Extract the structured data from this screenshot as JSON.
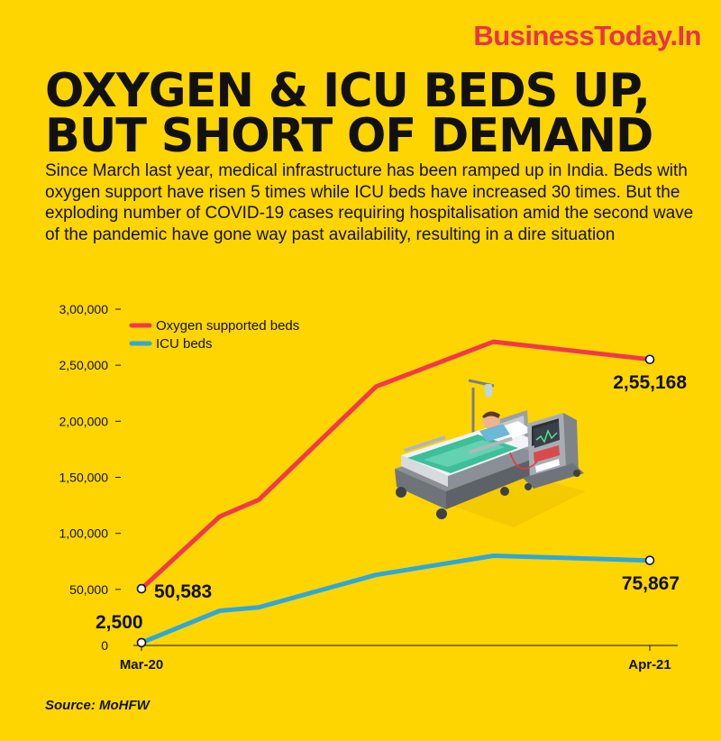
{
  "brand": {
    "name": "BusinessToday.In",
    "color": "#E8334A"
  },
  "headline": {
    "line1": "OXYGEN & ICU BEDS UP,",
    "line2": "BUT SHORT OF DEMAND"
  },
  "intro": "Since March last year, medical infrastructure has been ramped up in India. Beds with oxygen support have risen 5 times while ICU beds have increased 30 times. But the exploding number of COVID-19 cases requiring hospitalisation amid the second wave of the pandemic have gone way past availability, resulting in a dire situation",
  "source": "Source: MoHFW",
  "colors": {
    "background": "#FFD500",
    "oxygen": "#F2394A",
    "icu": "#2FA8D8"
  },
  "chart_data": {
    "type": "line",
    "title": "OXYGEN & ICU BEDS UP, BUT SHORT OF DEMAND",
    "xlabel": "",
    "ylabel": "",
    "x_range": [
      0,
      13
    ],
    "x_tick_labels": [
      {
        "x": 0,
        "label": "Mar-20"
      },
      {
        "x": 13,
        "label": "Apr-21"
      }
    ],
    "ylim": [
      0,
      300000
    ],
    "y_ticks": [
      {
        "value": 0,
        "label": "0"
      },
      {
        "value": 50000,
        "label": "50,000"
      },
      {
        "value": 100000,
        "label": "1,00,000"
      },
      {
        "value": 150000,
        "label": "1,50,000"
      },
      {
        "value": 200000,
        "label": "2,00,000"
      },
      {
        "value": 250000,
        "label": "2,50,000"
      },
      {
        "value": 300000,
        "label": "3,00,000"
      }
    ],
    "grid": false,
    "legend_position": "top-left",
    "series": [
      {
        "name": "Oxygen supported beds",
        "color": "#F2394A",
        "points": [
          [
            0,
            50583
          ],
          [
            2,
            115000
          ],
          [
            3,
            130000
          ],
          [
            6,
            231000
          ],
          [
            9,
            271000
          ],
          [
            13,
            255168
          ]
        ],
        "start_label": "50,583",
        "end_label": "2,55,168"
      },
      {
        "name": "ICU beds",
        "color": "#2FA8D8",
        "points": [
          [
            0,
            2500
          ],
          [
            2,
            31000
          ],
          [
            3,
            34000
          ],
          [
            6,
            63000
          ],
          [
            9,
            80000
          ],
          [
            13,
            75867
          ]
        ],
        "start_label": "2,500",
        "end_label": "75,867"
      }
    ]
  }
}
